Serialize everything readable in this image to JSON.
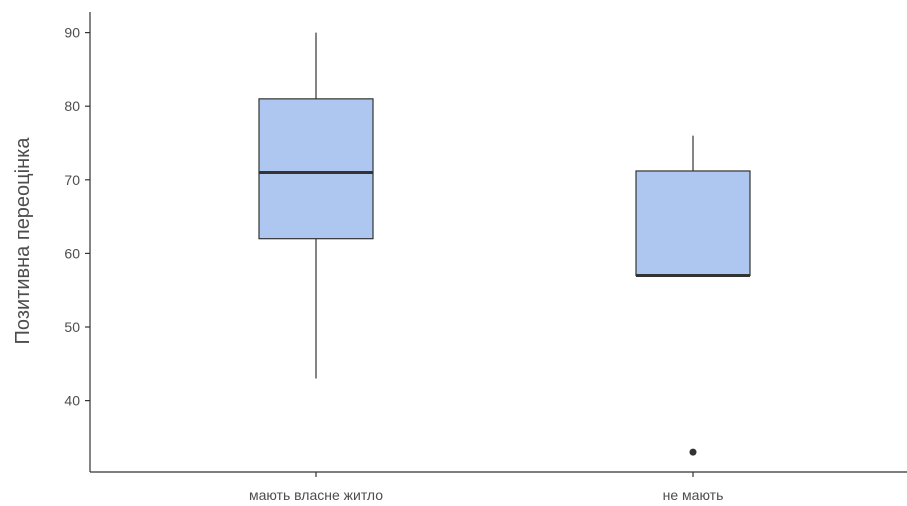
{
  "chart_data": {
    "type": "box",
    "title": "",
    "xlabel": "",
    "ylabel": "Позитивна переоцінка",
    "categories": [
      "мають власне житло",
      "не мають"
    ],
    "boxes": [
      {
        "name": "мають власне житло",
        "whisker_low": 43,
        "q1": 62,
        "median": 71,
        "q3": 81,
        "whisker_high": 90,
        "outliers": []
      },
      {
        "name": "не мають",
        "whisker_low": 57,
        "q1": 57,
        "median": 57,
        "q3": 71.2,
        "whisker_high": 76,
        "outliers": [
          33
        ]
      }
    ],
    "yticks": [
      40,
      50,
      60,
      70,
      80,
      90
    ],
    "ylim": [
      30.3,
      92.8
    ],
    "grid": false,
    "box_fill": "#aec7f0",
    "box_stroke": "#333333",
    "axis_color": "#333333",
    "text_color": "#4d4d4d"
  }
}
